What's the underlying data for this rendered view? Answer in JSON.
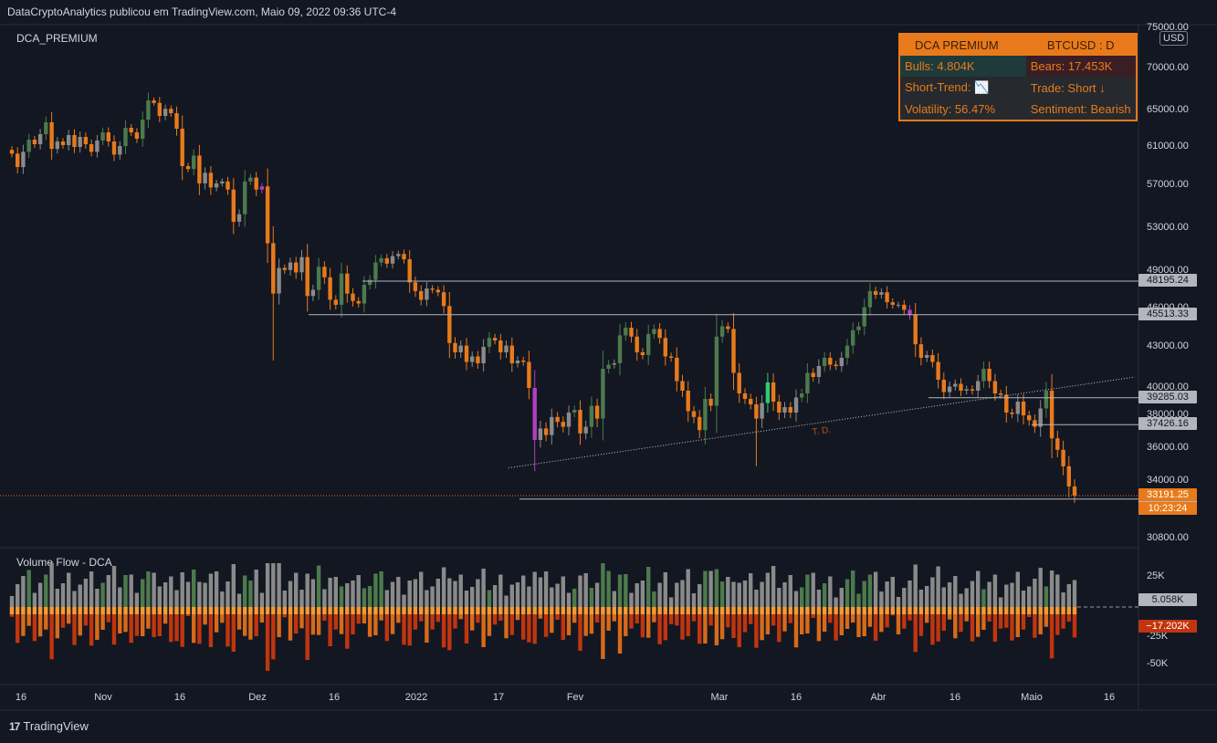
{
  "header": {
    "publisher": "DataCryptoAnalytics publicou em TradingView.com, Maio 09, 2022 09:36 UTC-4"
  },
  "indicator_main": "DCA_PREMIUM",
  "indicator_sub": "Volume Flow - DCA",
  "currency": "USD",
  "footer": {
    "brand": "TradingView",
    "logo": "17"
  },
  "table": {
    "title": "DCA PREMIUM",
    "symbol": "BTCUSD : D",
    "bulls": "Bulls: 4.804K",
    "bears": "Bears: 17.453K",
    "short_trend": "Short-Trend: 📉",
    "trade": "Trade: Short ↓",
    "volatility": "Volatility: 56.47%",
    "sentiment": "Sentiment: Bearish"
  },
  "colors": {
    "orange": "#e87a1b",
    "gray": "#8a8a8a",
    "green": "#4c7a4c",
    "magenta": "#b040c0",
    "red_vol": "#c0350f",
    "background": "#131722"
  },
  "chart_data": {
    "type": "candlestick",
    "y_ticks": [
      "75000.00",
      "70000.00",
      "65000.00",
      "61000.00",
      "57000.00",
      "53000.00",
      "49000.00",
      "46000.00",
      "43000.00",
      "40000.00",
      "38000.00",
      "36000.00",
      "34000.00",
      "30800.00"
    ],
    "x_ticks": [
      "16",
      "Nov",
      "16",
      "Dez",
      "16",
      "2022",
      "17",
      "Fev",
      "Mar",
      "16",
      "Abr",
      "16",
      "Maio",
      "16"
    ],
    "levels": [
      "48195.24",
      "45513.33",
      "39285.03",
      "37426.16",
      "33000.45"
    ],
    "last_price": "33191.25",
    "countdown": "10:23:24",
    "trendline_label": "T. D.",
    "volume": {
      "y_ticks": [
        "25K",
        "-25K",
        "-50K"
      ],
      "bull_value": "5.058K",
      "bear_value": "−17.202K"
    },
    "closes": [
      60300,
      58900,
      60500,
      61800,
      61300,
      62400,
      63700,
      60800,
      61600,
      61200,
      62300,
      61000,
      62100,
      61300,
      60500,
      61700,
      62600,
      61600,
      60200,
      61100,
      63100,
      62600,
      61900,
      64000,
      66200,
      65900,
      64400,
      65200,
      64700,
      63000,
      59000,
      58700,
      60100,
      57200,
      58300,
      56800,
      57200,
      57400,
      56600,
      53600,
      54300,
      57400,
      57800,
      56600,
      56900,
      51600,
      47200,
      49300,
      49100,
      49800,
      48900,
      50300,
      47000,
      47500,
      49400,
      48500,
      46700,
      46300,
      48800,
      47200,
      46600,
      46400,
      47900,
      48300,
      49800,
      50200,
      49700,
      50400,
      50600,
      50100,
      48100,
      47400,
      46700,
      47600,
      47500,
      47300,
      46200,
      43300,
      42600,
      43100,
      41900,
      42300,
      41800,
      43000,
      43700,
      43500,
      42600,
      43100,
      41800,
      42000,
      41900,
      40000,
      36500,
      37200,
      36800,
      37900,
      37600,
      37300,
      38200,
      38400,
      36900,
      37300,
      38700,
      37800,
      41400,
      41700,
      41800,
      43900,
      44500,
      43800,
      42600,
      42400,
      44000,
      44400,
      43700,
      42300,
      42200,
      40500,
      39800,
      38300,
      37900,
      37100,
      39200,
      38700,
      43800,
      44600,
      44400,
      41100,
      39600,
      39200,
      38800,
      37800,
      38900,
      40400,
      39000,
      38200,
      38600,
      38200,
      39300,
      39600,
      41100,
      40800,
      41600,
      42200,
      41700,
      41600,
      42200,
      43100,
      44300,
      44600,
      46100,
      47400,
      47100,
      47300,
      46500,
      46300,
      46300,
      45900,
      45500,
      43200,
      42200,
      42400,
      41900,
      40600,
      39700,
      40100,
      40300,
      39800,
      39900,
      39800,
      40500,
      41400,
      40500,
      39600,
      39500,
      38200,
      38100,
      39000,
      38000,
      37700,
      37300,
      38500,
      39800,
      36600,
      35900,
      34900,
      33700,
      33191
    ]
  }
}
